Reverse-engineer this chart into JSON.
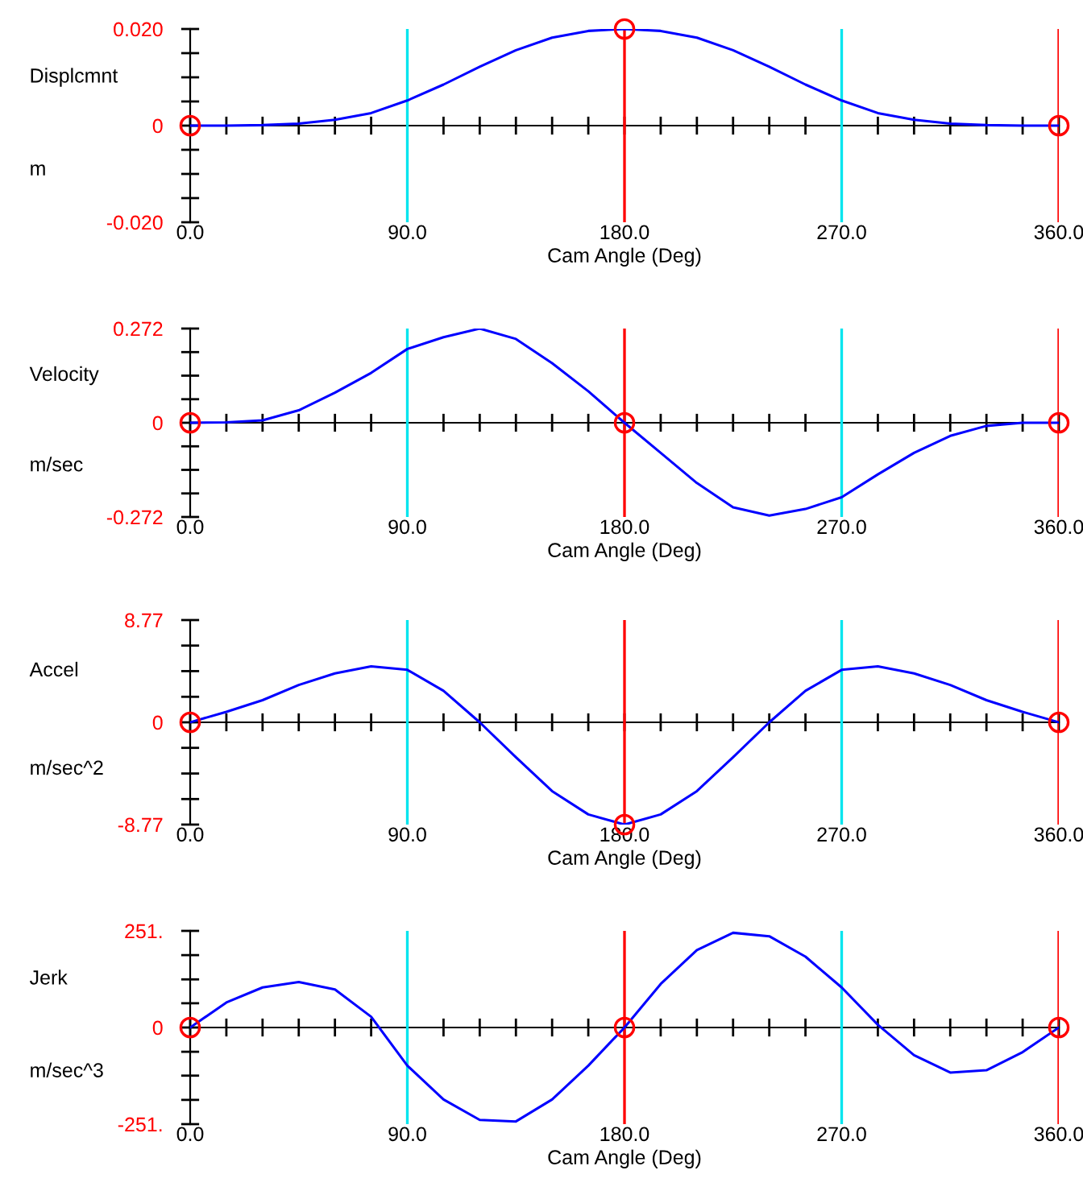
{
  "chart_data": [
    {
      "type": "line",
      "ylabel": "Displcmnt",
      "xlabel": "Cam Angle (Deg)",
      "annotations": [
        "m"
      ],
      "x": [
        0,
        15,
        30,
        45,
        60,
        75,
        90,
        105,
        120,
        135,
        150,
        165,
        180,
        195,
        210,
        225,
        240,
        255,
        270,
        285,
        300,
        315,
        330,
        345,
        360
      ],
      "xlim": [
        0,
        360
      ],
      "xticks": [
        {
          "value": 0,
          "label": "0.0"
        },
        {
          "value": 15,
          "label": null
        },
        {
          "value": 30,
          "label": null
        },
        {
          "value": 45,
          "label": null
        },
        {
          "value": 60,
          "label": null
        },
        {
          "value": 75,
          "label": null
        },
        {
          "value": 90,
          "label": "90.0"
        },
        {
          "value": 105,
          "label": null
        },
        {
          "value": 120,
          "label": null
        },
        {
          "value": 135,
          "label": null
        },
        {
          "value": 150,
          "label": null
        },
        {
          "value": 165,
          "label": null
        },
        {
          "value": 180,
          "label": "180.0"
        },
        {
          "value": 195,
          "label": null
        },
        {
          "value": 210,
          "label": null
        },
        {
          "value": 225,
          "label": null
        },
        {
          "value": 240,
          "label": null
        },
        {
          "value": 255,
          "label": null
        },
        {
          "value": 270,
          "label": "270.0"
        },
        {
          "value": 285,
          "label": null
        },
        {
          "value": 300,
          "label": null
        },
        {
          "value": 315,
          "label": null
        },
        {
          "value": 330,
          "label": null
        },
        {
          "value": 345,
          "label": null
        },
        {
          "value": 360,
          "label": "360.0"
        }
      ],
      "ylim": [
        -0.02,
        0.02
      ],
      "yticks": [
        {
          "value": -0.02,
          "label": "-0.020"
        },
        {
          "value": -0.015,
          "label": null
        },
        {
          "value": -0.01,
          "label": null
        },
        {
          "value": -0.005,
          "label": null
        },
        0,
        {
          "value": 0.005,
          "label": null
        },
        {
          "value": 0.01,
          "label": null
        },
        {
          "value": 0.015,
          "label": null
        },
        {
          "value": 0.02,
          "label": "0.020"
        }
      ],
      "ref_lines": [
        {
          "axis": "x",
          "value": 90,
          "color": "#00e5ee"
        },
        {
          "axis": "x",
          "value": 180,
          "color": "#ff0000"
        },
        {
          "axis": "x",
          "value": 270,
          "color": "#00e5ee"
        },
        {
          "axis": "x",
          "value": 360,
          "color": "#ff0000"
        }
      ],
      "series": [
        {
          "color": "#0000ff",
          "values": [
            0,
            0,
            0.0001,
            0.0004,
            0.0012,
            0.0026,
            0.0052,
            0.0085,
            0.0122,
            0.0156,
            0.0182,
            0.0196,
            0.02,
            0.0196,
            0.0182,
            0.0156,
            0.0122,
            0.0085,
            0.0052,
            0.0026,
            0.0012,
            0.0004,
            0.0001,
            0,
            0
          ]
        },
        {
          "type": "scatter",
          "color": "#ff0000",
          "marker": "circle",
          "x": [
            0,
            180,
            360
          ],
          "values": [
            0,
            0.02,
            0
          ]
        }
      ]
    },
    {
      "type": "line",
      "ylabel": "Velocity",
      "xlabel": "Cam Angle (Deg)",
      "annotations": [
        "m/sec"
      ],
      "x": [
        0,
        15,
        30,
        45,
        60,
        75,
        90,
        105,
        120,
        135,
        150,
        165,
        180,
        195,
        210,
        225,
        240,
        255,
        270,
        285,
        300,
        315,
        330,
        345,
        360
      ],
      "xlim": [
        0,
        360
      ],
      "xticks": [
        {
          "value": 0,
          "label": "0.0"
        },
        {
          "value": 15,
          "label": null
        },
        {
          "value": 30,
          "label": null
        },
        {
          "value": 45,
          "label": null
        },
        {
          "value": 60,
          "label": null
        },
        {
          "value": 75,
          "label": null
        },
        {
          "value": 90,
          "label": "90.0"
        },
        {
          "value": 105,
          "label": null
        },
        {
          "value": 120,
          "label": null
        },
        {
          "value": 135,
          "label": null
        },
        {
          "value": 150,
          "label": null
        },
        {
          "value": 165,
          "label": null
        },
        {
          "value": 180,
          "label": "180.0"
        },
        {
          "value": 195,
          "label": null
        },
        {
          "value": 210,
          "label": null
        },
        {
          "value": 225,
          "label": null
        },
        {
          "value": 240,
          "label": null
        },
        {
          "value": 255,
          "label": null
        },
        {
          "value": 270,
          "label": "270.0"
        },
        {
          "value": 285,
          "label": null
        },
        {
          "value": 300,
          "label": null
        },
        {
          "value": 315,
          "label": null
        },
        {
          "value": 330,
          "label": null
        },
        {
          "value": 345,
          "label": null
        },
        {
          "value": 360,
          "label": "360.0"
        }
      ],
      "ylim": [
        -0.272,
        0.272
      ],
      "yticks": [
        {
          "value": -0.272,
          "label": "-0.272"
        },
        {
          "value": -0.204,
          "label": null
        },
        {
          "value": -0.136,
          "label": null
        },
        {
          "value": -0.068,
          "label": null
        },
        0,
        {
          "value": 0.068,
          "label": null
        },
        {
          "value": 0.136,
          "label": null
        },
        {
          "value": 0.204,
          "label": null
        },
        {
          "value": 0.272,
          "label": "0.272"
        }
      ],
      "ref_lines": [
        {
          "axis": "x",
          "value": 90,
          "color": "#00e5ee"
        },
        {
          "axis": "x",
          "value": 180,
          "color": "#ff0000"
        },
        {
          "axis": "x",
          "value": 270,
          "color": "#00e5ee"
        },
        {
          "axis": "x",
          "value": 360,
          "color": "#ff0000"
        }
      ],
      "series": [
        {
          "color": "#0000ff",
          "values": [
            0,
            0.001,
            0.007,
            0.036,
            0.087,
            0.144,
            0.213,
            0.247,
            0.272,
            0.242,
            0.172,
            0.091,
            0,
            -0.087,
            -0.174,
            -0.244,
            -0.268,
            -0.249,
            -0.215,
            -0.149,
            -0.087,
            -0.038,
            -0.009,
            0,
            0
          ]
        },
        {
          "type": "scatter",
          "color": "#ff0000",
          "marker": "circle",
          "x": [
            0,
            180,
            360
          ],
          "values": [
            0,
            0,
            0
          ]
        }
      ]
    },
    {
      "type": "line",
      "ylabel": "Accel",
      "xlabel": "Cam Angle (Deg)",
      "annotations": [
        "m/sec^2"
      ],
      "x": [
        0,
        15,
        30,
        45,
        60,
        75,
        90,
        105,
        120,
        135,
        150,
        165,
        180,
        195,
        210,
        225,
        240,
        255,
        270,
        285,
        300,
        315,
        330,
        345,
        360
      ],
      "xlim": [
        0,
        360
      ],
      "xticks": [
        {
          "value": 0,
          "label": "0.0"
        },
        {
          "value": 15,
          "label": null
        },
        {
          "value": 30,
          "label": null
        },
        {
          "value": 45,
          "label": null
        },
        {
          "value": 60,
          "label": null
        },
        {
          "value": 75,
          "label": null
        },
        {
          "value": 90,
          "label": "90.0"
        },
        {
          "value": 105,
          "label": null
        },
        {
          "value": 120,
          "label": null
        },
        {
          "value": 135,
          "label": null
        },
        {
          "value": 150,
          "label": null
        },
        {
          "value": 165,
          "label": null
        },
        {
          "value": 180,
          "label": "180.0"
        },
        {
          "value": 195,
          "label": null
        },
        {
          "value": 210,
          "label": null
        },
        {
          "value": 225,
          "label": null
        },
        {
          "value": 240,
          "label": null
        },
        {
          "value": 255,
          "label": null
        },
        {
          "value": 270,
          "label": "270.0"
        },
        {
          "value": 285,
          "label": null
        },
        {
          "value": 300,
          "label": null
        },
        {
          "value": 315,
          "label": null
        },
        {
          "value": 330,
          "label": null
        },
        {
          "value": 345,
          "label": null
        },
        {
          "value": 360,
          "label": "360.0"
        }
      ],
      "ylim": [
        -8.77,
        8.77
      ],
      "yticks": [
        {
          "value": -8.77,
          "label": "-8.77"
        },
        {
          "value": -6.58,
          "label": null
        },
        {
          "value": -4.39,
          "label": null
        },
        {
          "value": -2.19,
          "label": null
        },
        0,
        {
          "value": 2.19,
          "label": null
        },
        {
          "value": 4.39,
          "label": null
        },
        {
          "value": 6.58,
          "label": null
        },
        {
          "value": 8.77,
          "label": "8.77"
        }
      ],
      "ref_lines": [
        {
          "axis": "x",
          "value": 90,
          "color": "#00e5ee"
        },
        {
          "axis": "x",
          "value": 180,
          "color": "#ff0000"
        },
        {
          "axis": "x",
          "value": 270,
          "color": "#00e5ee"
        },
        {
          "axis": "x",
          "value": 360,
          "color": "#ff0000"
        }
      ],
      "series": [
        {
          "color": "#0000ff",
          "values": [
            0,
            0.9,
            1.9,
            3.2,
            4.2,
            4.8,
            4.5,
            2.7,
            0,
            -3.0,
            -5.9,
            -7.9,
            -8.77,
            -7.9,
            -5.9,
            -3.0,
            0,
            2.7,
            4.5,
            4.8,
            4.2,
            3.2,
            1.9,
            0.9,
            0
          ]
        },
        {
          "type": "scatter",
          "color": "#ff0000",
          "marker": "circle",
          "x": [
            0,
            180,
            360
          ],
          "values": [
            0,
            -8.77,
            0
          ]
        }
      ]
    },
    {
      "type": "line",
      "ylabel": "Jerk",
      "xlabel": "Cam Angle (Deg)",
      "annotations": [
        "m/sec^3"
      ],
      "x": [
        0,
        15,
        30,
        45,
        60,
        75,
        90,
        105,
        120,
        135,
        150,
        165,
        180,
        195,
        210,
        225,
        240,
        255,
        270,
        285,
        300,
        315,
        330,
        345,
        360
      ],
      "xlim": [
        0,
        360
      ],
      "xticks": [
        {
          "value": 0,
          "label": "0.0"
        },
        {
          "value": 15,
          "label": null
        },
        {
          "value": 30,
          "label": null
        },
        {
          "value": 45,
          "label": null
        },
        {
          "value": 60,
          "label": null
        },
        {
          "value": 75,
          "label": null
        },
        {
          "value": 90,
          "label": "90.0"
        },
        {
          "value": 105,
          "label": null
        },
        {
          "value": 120,
          "label": null
        },
        {
          "value": 135,
          "label": null
        },
        {
          "value": 150,
          "label": null
        },
        {
          "value": 165,
          "label": null
        },
        {
          "value": 180,
          "label": "180.0"
        },
        {
          "value": 195,
          "label": null
        },
        {
          "value": 210,
          "label": null
        },
        {
          "value": 225,
          "label": null
        },
        {
          "value": 240,
          "label": null
        },
        {
          "value": 255,
          "label": null
        },
        {
          "value": 270,
          "label": "270.0"
        },
        {
          "value": 285,
          "label": null
        },
        {
          "value": 300,
          "label": null
        },
        {
          "value": 315,
          "label": null
        },
        {
          "value": 330,
          "label": null
        },
        {
          "value": 345,
          "label": null
        },
        {
          "value": 360,
          "label": "360.0"
        }
      ],
      "ylim": [
        -251,
        251
      ],
      "yticks": [
        {
          "value": -251,
          "label": "-251."
        },
        {
          "value": -188,
          "label": null
        },
        {
          "value": -125,
          "label": null
        },
        {
          "value": -63,
          "label": null
        },
        0,
        {
          "value": 63,
          "label": null
        },
        {
          "value": 125,
          "label": null
        },
        {
          "value": 188,
          "label": null
        },
        {
          "value": 251,
          "label": "251."
        }
      ],
      "ref_lines": [
        {
          "axis": "x",
          "value": 90,
          "color": "#00e5ee"
        },
        {
          "axis": "x",
          "value": 180,
          "color": "#ff0000"
        },
        {
          "axis": "x",
          "value": 270,
          "color": "#00e5ee"
        },
        {
          "axis": "x",
          "value": 360,
          "color": "#ff0000"
        }
      ],
      "series": [
        {
          "color": "#0000ff",
          "values": [
            0,
            65,
            104,
            118,
            99,
            28,
            -99,
            -187,
            -240,
            -244,
            -187,
            -99,
            0,
            113,
            201,
            246,
            237,
            184,
            104,
            7,
            -72,
            -117,
            -111,
            -64,
            0
          ]
        },
        {
          "type": "scatter",
          "color": "#ff0000",
          "marker": "circle",
          "x": [
            0,
            180,
            360
          ],
          "values": [
            0,
            0,
            0
          ]
        }
      ]
    }
  ]
}
